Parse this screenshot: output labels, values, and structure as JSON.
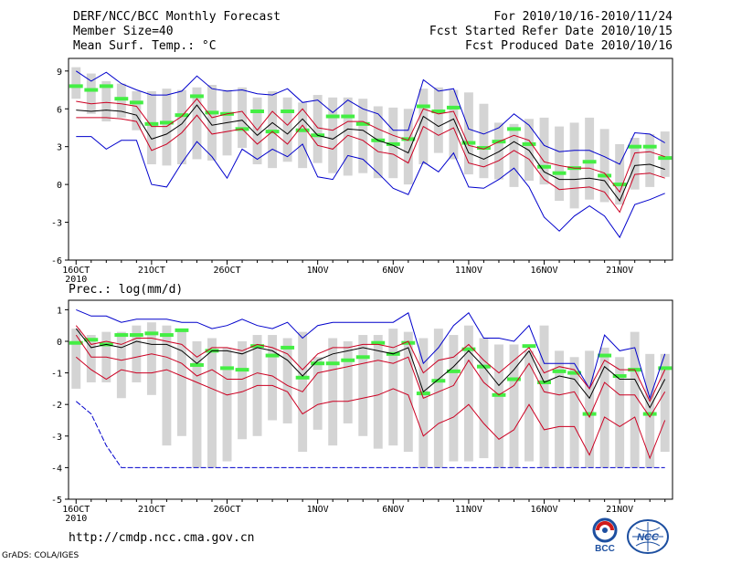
{
  "header": {
    "title": "DERF/NCC/BCC Monthly Forecast",
    "member_size": "Member Size=40",
    "variable": "Mean Surf. Temp.: °C",
    "period": "For 2010/10/16-2010/11/24",
    "started": "Fcst Started Refer Date 2010/10/15",
    "produced": "Fcst Produced Date 2010/10/16"
  },
  "footer": {
    "url": "http://cmdp.ncc.cma.gov.cn",
    "credit": "GrADS: COLA/IGES"
  },
  "logos": {
    "left": "BCC",
    "right": "NCC"
  },
  "colors": {
    "bar": "#d4d4d4",
    "green": "#44ee44",
    "blue": "#0000cc",
    "red": "#cc0022",
    "black": "#000000"
  },
  "chart_data": [
    {
      "type": "line",
      "title": "Mean Surf. Temp.: °C",
      "x_days": [
        1,
        2,
        3,
        4,
        5,
        6,
        7,
        8,
        9,
        10,
        11,
        12,
        13,
        14,
        15,
        16,
        17,
        18,
        19,
        20,
        21,
        22,
        23,
        24,
        25,
        26,
        27,
        28,
        29,
        30,
        31,
        32,
        33,
        34,
        35,
        36,
        37,
        38,
        39,
        40
      ],
      "tick_labels": [
        "16OCT",
        "21OCT",
        "26OCT",
        "1NOV",
        "6NOV",
        "11NOV",
        "16NOV",
        "21NOV"
      ],
      "tick_days": [
        1,
        6,
        11,
        17,
        22,
        27,
        32,
        37
      ],
      "year_label": "2010",
      "ylim": [
        -6,
        10
      ],
      "yticks": [
        -6,
        -3,
        0,
        3,
        6,
        9
      ],
      "series": [
        {
          "name": "bar_top",
          "values": [
            9.3,
            8.8,
            8.2,
            8.0,
            7.4,
            7.4,
            7.6,
            7.5,
            7.7,
            7.9,
            7.5,
            7.7,
            6.9,
            7.4,
            6.9,
            6.5,
            7.1,
            6.9,
            6.9,
            6.8,
            6.2,
            6.1,
            6.0,
            7.6,
            7.7,
            7.5,
            7.3,
            6.4,
            4.9,
            4.8,
            5.2,
            5.3,
            4.6,
            4.9,
            5.3,
            4.4,
            3.2,
            3.7,
            4.0,
            4.2
          ]
        },
        {
          "name": "bar_bottom",
          "values": [
            6.8,
            5.6,
            5.0,
            5.3,
            4.3,
            1.6,
            1.5,
            1.6,
            2.0,
            1.9,
            2.3,
            2.9,
            1.6,
            1.3,
            1.8,
            1.3,
            1.7,
            0.9,
            0.7,
            0.9,
            0.5,
            0.5,
            0.0,
            1.6,
            2.5,
            2.0,
            0.8,
            0.5,
            0.4,
            -0.2,
            0.3,
            0.0,
            -1.3,
            -1.9,
            -1.2,
            -1.4,
            -1.6,
            -0.4,
            -0.2,
            0.6
          ]
        },
        {
          "name": "observed",
          "values": [
            7.8,
            7.5,
            7.8,
            6.8,
            6.5,
            4.8,
            4.9,
            5.5,
            7.0,
            5.7,
            5.6,
            4.4,
            5.8,
            4.2,
            5.8,
            4.3,
            3.9,
            5.4,
            5.4,
            4.8,
            3.5,
            3.2,
            3.6,
            6.2,
            5.8,
            6.1,
            3.3,
            2.9,
            3.4,
            4.4,
            3.2,
            1.4,
            0.9,
            1.3,
            1.8,
            0.7,
            0.0,
            3.0,
            3.0,
            2.1
          ]
        },
        {
          "name": "max",
          "values": [
            9.0,
            8.2,
            8.9,
            8.0,
            7.5,
            7.1,
            7.1,
            7.4,
            8.6,
            7.6,
            7.4,
            7.5,
            7.2,
            7.1,
            7.6,
            6.5,
            6.7,
            5.7,
            6.7,
            6.0,
            5.6,
            4.3,
            4.3,
            8.3,
            7.4,
            7.6,
            4.4,
            4.0,
            4.5,
            5.6,
            4.7,
            3.1,
            2.6,
            2.7,
            2.7,
            2.2,
            1.6,
            4.1,
            4.0,
            3.3
          ]
        },
        {
          "name": "upper",
          "values": [
            6.6,
            6.4,
            6.5,
            6.4,
            6.2,
            4.6,
            4.6,
            5.4,
            6.8,
            5.3,
            5.6,
            5.8,
            4.3,
            5.8,
            4.7,
            6.0,
            4.5,
            4.3,
            5.0,
            5.0,
            4.4,
            3.9,
            3.5,
            6.0,
            5.6,
            5.8,
            3.1,
            2.8,
            3.4,
            3.9,
            3.5,
            1.8,
            1.5,
            1.3,
            1.3,
            0.9,
            -0.6,
            2.5,
            2.6,
            2.2
          ]
        },
        {
          "name": "mean",
          "values": [
            5.9,
            5.8,
            5.9,
            5.8,
            5.5,
            3.6,
            4.0,
            4.8,
            6.3,
            4.7,
            4.9,
            5.1,
            3.9,
            4.9,
            4.0,
            5.2,
            3.9,
            3.6,
            4.4,
            4.3,
            3.5,
            3.1,
            2.5,
            5.4,
            4.6,
            5.2,
            2.5,
            2.0,
            2.6,
            3.4,
            2.7,
            1.0,
            0.4,
            0.4,
            0.5,
            0.3,
            -1.3,
            1.5,
            1.6,
            1.2
          ]
        },
        {
          "name": "lower",
          "values": [
            5.3,
            5.3,
            5.3,
            5.2,
            5.0,
            2.7,
            3.2,
            4.1,
            5.5,
            4.0,
            4.2,
            4.4,
            3.2,
            4.2,
            3.2,
            4.7,
            3.1,
            2.8,
            3.9,
            3.5,
            2.6,
            2.4,
            1.7,
            4.6,
            3.9,
            4.5,
            1.7,
            1.4,
            1.9,
            2.7,
            2.0,
            0.4,
            -0.4,
            -0.3,
            -0.2,
            -0.6,
            -2.2,
            0.8,
            0.9,
            0.5
          ]
        },
        {
          "name": "min",
          "values": [
            3.8,
            3.8,
            2.8,
            3.5,
            3.5,
            0.0,
            -0.2,
            1.7,
            3.4,
            2.2,
            0.5,
            2.8,
            2.0,
            2.8,
            2.2,
            3.2,
            0.6,
            0.4,
            2.3,
            2.0,
            0.9,
            -0.3,
            -0.8,
            1.8,
            1.0,
            2.5,
            -0.2,
            -0.3,
            0.4,
            1.3,
            -0.2,
            -2.6,
            -3.7,
            -2.5,
            -1.7,
            -2.5,
            -4.2,
            -1.6,
            -1.2,
            -0.7
          ]
        }
      ]
    },
    {
      "type": "line",
      "title": "Prec.: log(mm/d)",
      "x_days": [
        1,
        2,
        3,
        4,
        5,
        6,
        7,
        8,
        9,
        10,
        11,
        12,
        13,
        14,
        15,
        16,
        17,
        18,
        19,
        20,
        21,
        22,
        23,
        24,
        25,
        26,
        27,
        28,
        29,
        30,
        31,
        32,
        33,
        34,
        35,
        36,
        37,
        38,
        39,
        40
      ],
      "tick_labels": [
        "16OCT",
        "21OCT",
        "26OCT",
        "1NOV",
        "6NOV",
        "11NOV",
        "16NOV",
        "21NOV"
      ],
      "tick_days": [
        1,
        6,
        11,
        17,
        22,
        27,
        32,
        37
      ],
      "year_label": "2010",
      "ylim": [
        -5,
        1.3
      ],
      "yticks": [
        -5,
        -4,
        -3,
        -2,
        -1,
        0,
        1
      ],
      "series": [
        {
          "name": "bar_top",
          "values": [
            0.4,
            0.2,
            0.3,
            0.3,
            0.5,
            0.6,
            0.5,
            0.4,
            0.0,
            0.1,
            -0.2,
            0.0,
            0.2,
            0.2,
            0.1,
            0.3,
            -0.5,
            0.1,
            0.0,
            0.2,
            0.2,
            0.4,
            0.3,
            0.1,
            0.4,
            0.2,
            0.5,
            0.1,
            -0.1,
            -0.1,
            -0.3,
            0.5,
            -0.3,
            -0.5,
            -0.3,
            -0.2,
            -0.5,
            0.3,
            -0.4,
            -0.4
          ]
        },
        {
          "name": "bar_bottom",
          "values": [
            -1.5,
            -1.3,
            -1.3,
            -1.8,
            -1.3,
            -1.7,
            -3.3,
            -3.0,
            -4.0,
            -4.0,
            -3.8,
            -3.1,
            -3.0,
            -2.5,
            -2.6,
            -3.5,
            -2.8,
            -3.3,
            -2.6,
            -3.0,
            -3.4,
            -3.3,
            -3.5,
            -4.0,
            -4.0,
            -3.8,
            -3.8,
            -3.7,
            -4.0,
            -4.0,
            -3.8,
            -4.0,
            -4.0,
            -4.0,
            -4.0,
            -4.0,
            -4.0,
            -4.0,
            -4.0,
            -3.5
          ]
        },
        {
          "name": "observed",
          "values": [
            -0.05,
            0.05,
            -0.1,
            0.2,
            0.2,
            0.25,
            0.2,
            0.35,
            -0.75,
            -0.3,
            -0.85,
            -0.9,
            -0.15,
            -0.45,
            -0.2,
            -1.15,
            -0.7,
            -0.7,
            -0.6,
            -0.5,
            -0.05,
            -0.4,
            -0.05,
            -1.65,
            -1.25,
            -0.95,
            -0.25,
            -0.8,
            -1.7,
            -1.2,
            -0.15,
            -1.3,
            -0.95,
            -1.0,
            -2.3,
            -0.45,
            -1.1,
            -0.9,
            -2.3,
            -0.85
          ]
        },
        {
          "name": "max",
          "values": [
            1.0,
            0.8,
            0.8,
            0.6,
            0.7,
            0.7,
            0.7,
            0.6,
            0.6,
            0.4,
            0.5,
            0.7,
            0.5,
            0.4,
            0.6,
            0.1,
            0.5,
            0.6,
            0.6,
            0.6,
            0.6,
            0.6,
            0.9,
            -0.7,
            -0.2,
            0.5,
            0.9,
            0.1,
            0.1,
            0.0,
            0.5,
            -0.7,
            -0.7,
            -0.7,
            -1.5,
            0.2,
            -0.3,
            -0.2,
            -1.8,
            -0.4
          ]
        },
        {
          "name": "upper",
          "values": [
            0.5,
            -0.1,
            0.0,
            -0.1,
            0.1,
            0.1,
            0.0,
            -0.1,
            -0.5,
            -0.2,
            -0.2,
            -0.3,
            -0.1,
            -0.2,
            -0.4,
            -0.9,
            -0.4,
            -0.2,
            -0.2,
            -0.1,
            -0.1,
            -0.2,
            0.0,
            -1.0,
            -0.6,
            -0.5,
            -0.1,
            -0.6,
            -1.0,
            -0.6,
            -0.2,
            -1.0,
            -0.8,
            -0.9,
            -1.5,
            -0.6,
            -0.9,
            -0.9,
            -1.9,
            -0.9
          ]
        },
        {
          "name": "mean",
          "values": [
            0.4,
            -0.2,
            -0.1,
            -0.2,
            0.0,
            -0.1,
            -0.1,
            -0.3,
            -0.7,
            -0.3,
            -0.3,
            -0.4,
            -0.2,
            -0.3,
            -0.6,
            -1.1,
            -0.6,
            -0.4,
            -0.3,
            -0.2,
            -0.3,
            -0.4,
            -0.2,
            -1.6,
            -1.2,
            -0.8,
            -0.3,
            -0.8,
            -1.4,
            -0.9,
            -0.3,
            -1.3,
            -1.1,
            -1.2,
            -1.8,
            -0.8,
            -1.2,
            -1.2,
            -2.1,
            -1.2
          ]
        },
        {
          "name": "lower",
          "values": [
            0.2,
            -0.5,
            -0.5,
            -0.6,
            -0.5,
            -0.4,
            -0.5,
            -0.7,
            -1.1,
            -0.9,
            -1.2,
            -1.2,
            -1.0,
            -1.1,
            -1.4,
            -1.6,
            -1.0,
            -0.9,
            -0.8,
            -0.7,
            -0.6,
            -0.7,
            -0.5,
            -1.8,
            -1.6,
            -1.4,
            -0.6,
            -1.3,
            -1.7,
            -1.4,
            -0.7,
            -1.6,
            -1.7,
            -1.6,
            -2.4,
            -1.3,
            -1.7,
            -1.7,
            -2.4,
            -1.6
          ]
        },
        {
          "name": "p10",
          "values": [
            -0.5,
            -0.9,
            -1.2,
            -0.9,
            -1.0,
            -1.0,
            -0.9,
            -1.1,
            -1.3,
            -1.5,
            -1.7,
            -1.6,
            -1.4,
            -1.4,
            -1.6,
            -2.3,
            -2.0,
            -1.9,
            -1.9,
            -1.8,
            -1.7,
            -1.5,
            -1.7,
            -3.0,
            -2.6,
            -2.4,
            -2.0,
            -2.6,
            -3.1,
            -2.8,
            -2.0,
            -2.8,
            -2.7,
            -2.7,
            -3.6,
            -2.4,
            -2.7,
            -2.4,
            -3.7,
            -2.5
          ]
        },
        {
          "name": "min",
          "values": [
            -1.9,
            -2.3,
            -3.3,
            -4.0,
            -4.0,
            -4.0,
            -4.0,
            -4.0,
            -4.0,
            -4.0,
            -4.0,
            -4.0,
            -4.0,
            -4.0,
            -4.0,
            -4.0,
            -4.0,
            -4.0,
            -4.0,
            -4.0,
            -4.0,
            -4.0,
            -4.0,
            -4.0,
            -4.0,
            -4.0,
            -4.0,
            -4.0,
            -4.0,
            -4.0,
            -4.0,
            -4.0,
            -4.0,
            -4.0,
            -4.0,
            -4.0,
            -4.0,
            -4.0,
            -4.0,
            -4.0
          ]
        }
      ]
    }
  ]
}
